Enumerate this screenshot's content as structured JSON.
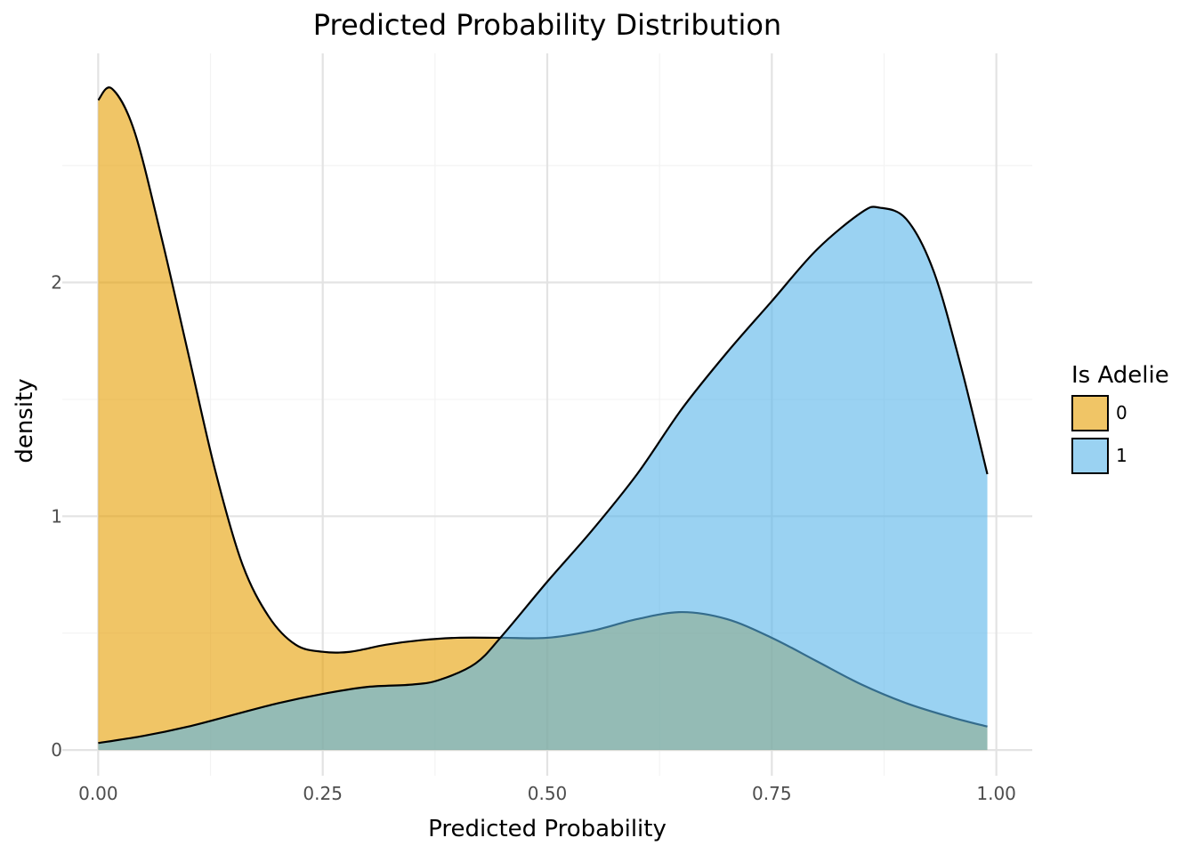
{
  "chart_data": {
    "type": "area",
    "title": "Predicted Probability Distribution",
    "xlabel": "Predicted Probability",
    "ylabel": "density",
    "xlim": [
      -0.04,
      1.04
    ],
    "ylim": [
      -0.11,
      2.98
    ],
    "x_ticks": [
      0.0,
      0.25,
      0.5,
      0.75,
      1.0
    ],
    "x_tick_labels": [
      "0.00",
      "0.25",
      "0.50",
      "0.75",
      "1.00"
    ],
    "y_ticks": [
      0,
      1,
      2
    ],
    "y_tick_labels": [
      "0",
      "1",
      "2"
    ],
    "grid": true,
    "legend": {
      "title": "Is Adelie",
      "position": "right"
    },
    "series": [
      {
        "name": "0",
        "color": "#E69F00",
        "x": [
          0.0,
          0.015,
          0.04,
          0.07,
          0.1,
          0.13,
          0.16,
          0.19,
          0.22,
          0.25,
          0.28,
          0.32,
          0.36,
          0.4,
          0.45,
          0.5,
          0.55,
          0.6,
          0.65,
          0.7,
          0.75,
          0.8,
          0.85,
          0.9,
          0.95,
          0.99
        ],
        "y": [
          2.78,
          2.83,
          2.65,
          2.2,
          1.7,
          1.2,
          0.8,
          0.57,
          0.45,
          0.42,
          0.42,
          0.45,
          0.47,
          0.48,
          0.48,
          0.48,
          0.51,
          0.56,
          0.59,
          0.56,
          0.48,
          0.38,
          0.28,
          0.2,
          0.14,
          0.1
        ]
      },
      {
        "name": "1",
        "color": "#56B4E9",
        "x": [
          0.0,
          0.05,
          0.1,
          0.15,
          0.2,
          0.25,
          0.3,
          0.35,
          0.38,
          0.42,
          0.45,
          0.5,
          0.55,
          0.6,
          0.65,
          0.7,
          0.75,
          0.8,
          0.85,
          0.87,
          0.9,
          0.93,
          0.96,
          0.99
        ],
        "y": [
          0.03,
          0.06,
          0.1,
          0.15,
          0.2,
          0.24,
          0.27,
          0.28,
          0.3,
          0.37,
          0.49,
          0.72,
          0.94,
          1.18,
          1.46,
          1.7,
          1.92,
          2.14,
          2.3,
          2.32,
          2.27,
          2.05,
          1.65,
          1.18
        ]
      }
    ]
  }
}
